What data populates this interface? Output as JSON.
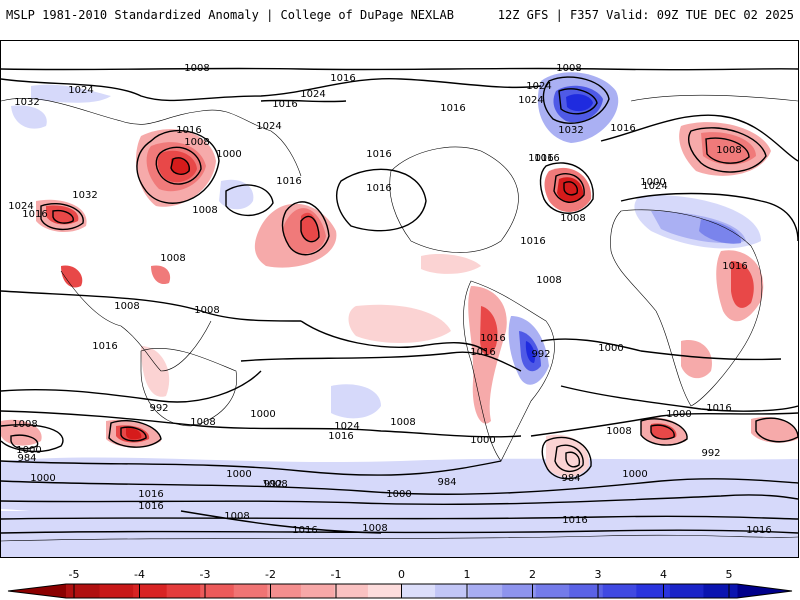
{
  "header": {
    "title": "MSLP 1981-2010 Standardized Anomaly | College of DuPage NEXLAB",
    "run_info": "12Z GFS | F357 Valid: 09Z TUE DEC 02 2025"
  },
  "colorbar": {
    "ticks": [
      "-5",
      "-4",
      "-3",
      "-2",
      "-1",
      "0",
      "1",
      "2",
      "3",
      "4",
      "5"
    ],
    "colors": [
      "#d61b1b",
      "#e84848",
      "#f07a7a",
      "#f6aaaa",
      "#fbd3d3",
      "#ffffff",
      "#d6d9fa",
      "#aab0f3",
      "#7a84ec",
      "#4f5ae6",
      "#1f2bdf"
    ]
  },
  "map": {
    "isobar_labels": [
      "1008",
      "1008",
      "1016",
      "1024",
      "1024",
      "1024",
      "1032",
      "1016",
      "1016",
      "1024",
      "1024",
      "1032",
      "1016",
      "1008",
      "1000",
      "1016",
      "1016",
      "1008",
      "1016",
      "1016",
      "1008",
      "1024",
      "1016",
      "1000",
      "1016",
      "1032",
      "1024",
      "1016",
      "1008",
      "1008",
      "1008",
      "1008",
      "1016",
      "1016",
      "1008",
      "1016",
      "1000",
      "1016",
      "1016",
      "992",
      "1024",
      "1016",
      "1008",
      "1000",
      "1008",
      "992",
      "984",
      "1000",
      "1008",
      "984",
      "1000",
      "1016",
      "992",
      "1008",
      "1000",
      "1000",
      "984",
      "1008",
      "1016",
      "1000",
      "1016",
      "992",
      "1016",
      "1008",
      "1016",
      "1008",
      "1000",
      "1000",
      "1016"
    ]
  }
}
